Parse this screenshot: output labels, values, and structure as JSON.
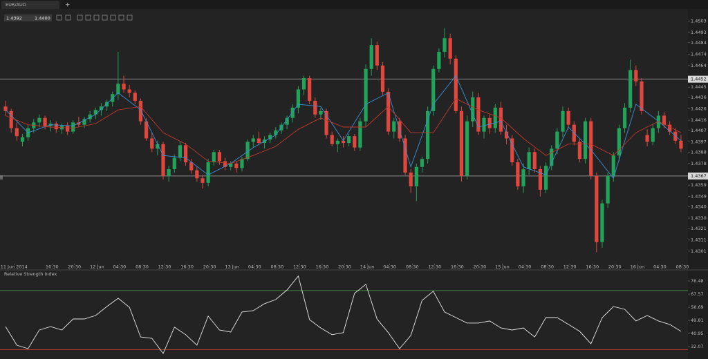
{
  "ui": {
    "tab": "EUR/AUD",
    "tab_add": "+",
    "bid": "1.4392",
    "ask": "1.4400"
  },
  "chart_data": [
    {
      "type": "candlestick",
      "up_color": "#22a35a",
      "down_color": "#e0473f",
      "xlim": [
        -0.5,
        120.5
      ],
      "ylim": [
        1.429,
        1.4513
      ],
      "xticks": [
        {
          "value": 1.5,
          "label": "11 Jun 2014"
        },
        {
          "value": 8.25,
          "label": "16:30"
        },
        {
          "value": 12.25,
          "label": "20:30"
        },
        {
          "value": 16.25,
          "label": "12 Jun"
        },
        {
          "value": 20.25,
          "label": "04:30"
        },
        {
          "value": 24.25,
          "label": "08:30"
        },
        {
          "value": 28.25,
          "label": "12:30"
        },
        {
          "value": 32.25,
          "label": "16:30"
        },
        {
          "value": 36.25,
          "label": "20:30"
        },
        {
          "value": 40.25,
          "label": "13 Jun"
        },
        {
          "value": 44.25,
          "label": "04:30"
        },
        {
          "value": 48.25,
          "label": "08:30"
        },
        {
          "value": 52.25,
          "label": "12:30"
        },
        {
          "value": 56.25,
          "label": "16:30"
        },
        {
          "value": 60.25,
          "label": "20:30"
        },
        {
          "value": 64.25,
          "label": "14 Jun"
        },
        {
          "value": 68.25,
          "label": "04:30"
        },
        {
          "value": 72.25,
          "label": "08:30"
        },
        {
          "value": 76.25,
          "label": "12:30"
        },
        {
          "value": 80.25,
          "label": "16:30"
        },
        {
          "value": 84.25,
          "label": "20:30"
        },
        {
          "value": 88.25,
          "label": "15 Jun"
        },
        {
          "value": 92.25,
          "label": "04:30"
        },
        {
          "value": 96.25,
          "label": "08:30"
        },
        {
          "value": 100.25,
          "label": "12:30"
        },
        {
          "value": 104.25,
          "label": "16:30"
        },
        {
          "value": 108.25,
          "label": "20:30"
        },
        {
          "value": 112.25,
          "label": "16 Jun"
        },
        {
          "value": 116.25,
          "label": "04:30"
        },
        {
          "value": 120.25,
          "label": "08:30"
        }
      ],
      "yticks": [
        1.4503,
        1.4493,
        1.4484,
        1.4474,
        1.4464,
        1.4445,
        1.4436,
        1.4426,
        1.4416,
        1.4407,
        1.4397,
        1.4388,
        1.4378,
        1.4359,
        1.4349,
        {
          "value": 1.434,
          "label": "1.4340"
        },
        {
          "value": 1.433,
          "label": "1.4330"
        },
        1.4321,
        1.4311,
        1.4301
      ],
      "levels": [
        1.4452,
        1.4367
      ],
      "ohlc": [
        [
          1.4428,
          1.4433,
          1.442,
          1.4424
        ],
        [
          1.4424,
          1.4426,
          1.4405,
          1.4409
        ],
        [
          1.4409,
          1.4414,
          1.4398,
          1.4402
        ],
        [
          1.4397,
          1.4404,
          1.4393,
          1.4401
        ],
        [
          1.4401,
          1.4412,
          1.4398,
          1.4409
        ],
        [
          1.4409,
          1.4417,
          1.4405,
          1.4414
        ],
        [
          1.4414,
          1.4421,
          1.441,
          1.4418
        ],
        [
          1.4418,
          1.442,
          1.4408,
          1.4411
        ],
        [
          1.4411,
          1.4416,
          1.4406,
          1.4413
        ],
        [
          1.4413,
          1.4415,
          1.4405,
          1.4408
        ],
        [
          1.4408,
          1.4413,
          1.4404,
          1.4411
        ],
        [
          1.4411,
          1.4414,
          1.4403,
          1.4406
        ],
        [
          1.4406,
          1.4416,
          1.4404,
          1.4414
        ],
        [
          1.4414,
          1.4419,
          1.441,
          1.4412
        ],
        [
          1.4412,
          1.4419,
          1.4409,
          1.4417
        ],
        [
          1.4417,
          1.4424,
          1.4414,
          1.4421
        ],
        [
          1.4421,
          1.4427,
          1.4417,
          1.4425
        ],
        [
          1.4425,
          1.4431,
          1.442,
          1.4428
        ],
        [
          1.4428,
          1.4434,
          1.4424,
          1.4432
        ],
        [
          1.4432,
          1.4441,
          1.4428,
          1.4439
        ],
        [
          1.4439,
          1.4476,
          1.4434,
          1.4448
        ],
        [
          1.4448,
          1.4455,
          1.444,
          1.4443
        ],
        [
          1.4443,
          1.4447,
          1.4436,
          1.444
        ],
        [
          1.444,
          1.4442,
          1.443,
          1.4433
        ],
        [
          1.4433,
          1.4435,
          1.4412,
          1.4415
        ],
        [
          1.4415,
          1.4418,
          1.4398,
          1.44
        ],
        [
          1.44,
          1.4405,
          1.4388,
          1.4391
        ],
        [
          1.4391,
          1.4398,
          1.4385,
          1.4395
        ],
        [
          1.4395,
          1.4397,
          1.4364,
          1.4367
        ],
        [
          1.4367,
          1.4376,
          1.4362,
          1.4373
        ],
        [
          1.4373,
          1.4386,
          1.437,
          1.4383
        ],
        [
          1.4383,
          1.4397,
          1.438,
          1.4394
        ],
        [
          1.4394,
          1.4396,
          1.4376,
          1.4379
        ],
        [
          1.4379,
          1.4382,
          1.4369,
          1.4372
        ],
        [
          1.4372,
          1.4375,
          1.4362,
          1.4365
        ],
        [
          1.4365,
          1.4368,
          1.4356,
          1.4361
        ],
        [
          1.4361,
          1.4382,
          1.4358,
          1.4379
        ],
        [
          1.4379,
          1.439,
          1.4376,
          1.4388
        ],
        [
          1.4388,
          1.439,
          1.4377,
          1.438
        ],
        [
          1.438,
          1.4383,
          1.4372,
          1.4375
        ],
        [
          1.4375,
          1.438,
          1.4372,
          1.4378
        ],
        [
          1.4378,
          1.438,
          1.437,
          1.4374
        ],
        [
          1.4374,
          1.4384,
          1.4371,
          1.4382
        ],
        [
          1.4382,
          1.4399,
          1.438,
          1.4397
        ],
        [
          1.4397,
          1.4403,
          1.4392,
          1.44
        ],
        [
          1.44,
          1.4406,
          1.4394,
          1.4396
        ],
        [
          1.4396,
          1.4402,
          1.4391,
          1.4399
        ],
        [
          1.4399,
          1.4405,
          1.4396,
          1.4403
        ],
        [
          1.4403,
          1.441,
          1.44,
          1.4407
        ],
        [
          1.4407,
          1.4414,
          1.4404,
          1.4412
        ],
        [
          1.4412,
          1.442,
          1.4408,
          1.4418
        ],
        [
          1.4418,
          1.443,
          1.4414,
          1.4427
        ],
        [
          1.4427,
          1.4446,
          1.4422,
          1.4443
        ],
        [
          1.4443,
          1.4455,
          1.4438,
          1.4453
        ],
        [
          1.4453,
          1.4455,
          1.443,
          1.4433
        ],
        [
          1.4433,
          1.4436,
          1.4418,
          1.4421
        ],
        [
          1.4421,
          1.4427,
          1.4416,
          1.4424
        ],
        [
          1.4424,
          1.4426,
          1.44,
          1.4403
        ],
        [
          1.4403,
          1.4406,
          1.4393,
          1.4395
        ],
        [
          1.4395,
          1.44,
          1.4388,
          1.4398
        ],
        [
          1.4398,
          1.4402,
          1.4392,
          1.4396
        ],
        [
          1.4396,
          1.4404,
          1.4393,
          1.4402
        ],
        [
          1.4402,
          1.4404,
          1.4389,
          1.4392
        ],
        [
          1.4392,
          1.4418,
          1.4389,
          1.4415
        ],
        [
          1.4415,
          1.4465,
          1.441,
          1.4461
        ],
        [
          1.4461,
          1.4488,
          1.4455,
          1.4482
        ],
        [
          1.4482,
          1.4485,
          1.446,
          1.4464
        ],
        [
          1.4464,
          1.4467,
          1.4438,
          1.4441
        ],
        [
          1.4441,
          1.4444,
          1.4403,
          1.4406
        ],
        [
          1.4406,
          1.4418,
          1.44,
          1.4415
        ],
        [
          1.4415,
          1.4418,
          1.4397,
          1.44
        ],
        [
          1.44,
          1.4403,
          1.4368,
          1.437
        ],
        [
          1.437,
          1.4373,
          1.4352,
          1.4358
        ],
        [
          1.4358,
          1.4378,
          1.4345,
          1.4375
        ],
        [
          1.4375,
          1.4384,
          1.437,
          1.4382
        ],
        [
          1.4382,
          1.4428,
          1.4378,
          1.4424
        ],
        [
          1.4424,
          1.4464,
          1.442,
          1.4461
        ],
        [
          1.4461,
          1.4479,
          1.4458,
          1.4476
        ],
        [
          1.4476,
          1.4497,
          1.4471,
          1.4488
        ],
        [
          1.4488,
          1.4492,
          1.4465,
          1.447
        ],
        [
          1.447,
          1.4473,
          1.4422,
          1.4424
        ],
        [
          1.4424,
          1.4428,
          1.4362,
          1.4367
        ],
        [
          1.4367,
          1.442,
          1.4364,
          1.4415
        ],
        [
          1.4415,
          1.4441,
          1.441,
          1.4436
        ],
        [
          1.4436,
          1.444,
          1.4403,
          1.4406
        ],
        [
          1.4406,
          1.442,
          1.44,
          1.4418
        ],
        [
          1.4418,
          1.4421,
          1.4404,
          1.4409
        ],
        [
          1.4409,
          1.443,
          1.4405,
          1.4427
        ],
        [
          1.4427,
          1.4432,
          1.4403,
          1.4406
        ],
        [
          1.4406,
          1.4412,
          1.4395,
          1.44
        ],
        [
          1.44,
          1.4403,
          1.4376,
          1.4379
        ],
        [
          1.4379,
          1.4382,
          1.4355,
          1.4358
        ],
        [
          1.4358,
          1.4378,
          1.4352,
          1.4373
        ],
        [
          1.4373,
          1.4392,
          1.4368,
          1.4388
        ],
        [
          1.4388,
          1.4391,
          1.437,
          1.4373
        ],
        [
          1.4373,
          1.4376,
          1.4349,
          1.4355
        ],
        [
          1.4355,
          1.4379,
          1.4352,
          1.4376
        ],
        [
          1.4376,
          1.4394,
          1.4372,
          1.4391
        ],
        [
          1.4391,
          1.4409,
          1.4386,
          1.4406
        ],
        [
          1.4406,
          1.4428,
          1.4401,
          1.4424
        ],
        [
          1.4424,
          1.4427,
          1.4409,
          1.4412
        ],
        [
          1.4412,
          1.4415,
          1.4394,
          1.4397
        ],
        [
          1.4397,
          1.44,
          1.4379,
          1.4382
        ],
        [
          1.4382,
          1.4418,
          1.4378,
          1.4415
        ],
        [
          1.4415,
          1.4418,
          1.4364,
          1.4367
        ],
        [
          1.4367,
          1.437,
          1.43,
          1.4309
        ],
        [
          1.4309,
          1.4346,
          1.4304,
          1.4343
        ],
        [
          1.4343,
          1.437,
          1.4339,
          1.4367
        ],
        [
          1.4367,
          1.4388,
          1.4362,
          1.4385
        ],
        [
          1.4385,
          1.4412,
          1.438,
          1.4409
        ],
        [
          1.4409,
          1.4431,
          1.4405,
          1.4427
        ],
        [
          1.4427,
          1.4469,
          1.4423,
          1.446
        ],
        [
          1.446,
          1.4464,
          1.4446,
          1.445
        ],
        [
          1.445,
          1.4453,
          1.4421,
          1.4424
        ],
        [
          1.4403,
          1.4408,
          1.4393,
          1.4397
        ],
        [
          1.4397,
          1.4413,
          1.4394,
          1.4409
        ],
        [
          1.4409,
          1.4424,
          1.4405,
          1.442
        ],
        [
          1.442,
          1.4423,
          1.4409,
          1.4412
        ],
        [
          1.4412,
          1.4415,
          1.4403,
          1.4406
        ],
        [
          1.4406,
          1.4409,
          1.4395,
          1.4398
        ],
        [
          1.4398,
          1.4403,
          1.4388,
          1.4391
        ]
      ],
      "series": [
        {
          "color": "#3b8fd6",
          "x": [
            0,
            4,
            8,
            12,
            16,
            20,
            24,
            28,
            32,
            36,
            40,
            44,
            48,
            52,
            56,
            60,
            64,
            68,
            72,
            76,
            80,
            84,
            88,
            92,
            96,
            100,
            104,
            108,
            112,
            116,
            120
          ],
          "values": [
            1.4425,
            1.4405,
            1.4412,
            1.4411,
            1.4421,
            1.444,
            1.4425,
            1.4385,
            1.4383,
            1.4368,
            1.4378,
            1.4392,
            1.4403,
            1.443,
            1.4428,
            1.4398,
            1.443,
            1.444,
            1.4375,
            1.443,
            1.4455,
            1.441,
            1.4415,
            1.4375,
            1.4368,
            1.441,
            1.439,
            1.4365,
            1.443,
            1.4415,
            1.4398
          ]
        },
        {
          "color": "#c0392b",
          "x": [
            0,
            4,
            8,
            12,
            16,
            20,
            24,
            28,
            32,
            36,
            40,
            44,
            48,
            52,
            56,
            60,
            64,
            68,
            72,
            76,
            80,
            84,
            88,
            92,
            96,
            100,
            104,
            108,
            112,
            116,
            120
          ],
          "values": [
            1.442,
            1.4412,
            1.441,
            1.4409,
            1.4413,
            1.4425,
            1.4428,
            1.4405,
            1.4395,
            1.438,
            1.4378,
            1.4385,
            1.4393,
            1.4408,
            1.4418,
            1.441,
            1.441,
            1.4428,
            1.4405,
            1.4405,
            1.4435,
            1.4425,
            1.4418,
            1.44,
            1.4385,
            1.4395,
            1.4395,
            1.4385,
            1.4405,
            1.4415,
            1.4405
          ]
        }
      ]
    },
    {
      "type": "line",
      "title": "Relative Strength Index",
      "color": "#e8e8e8",
      "xlim": [
        -0.5,
        120.5
      ],
      "ylim": [
        24.6,
        83.5
      ],
      "yticks": [
        76.48,
        67.57,
        58.69,
        49.81,
        40.95,
        32.07
      ],
      "levels": [
        70,
        30
      ],
      "level_colors": [
        "#3f8a3f",
        "#b03a32"
      ],
      "x": [
        0,
        2,
        4,
        6,
        8,
        10,
        12,
        14,
        16,
        18,
        20,
        22,
        24,
        26,
        28,
        30,
        32,
        34,
        36,
        38,
        40,
        42,
        44,
        46,
        48,
        50,
        52,
        54,
        56,
        58,
        60,
        62,
        64,
        66,
        68,
        70,
        72,
        74,
        76,
        78,
        80,
        82,
        84,
        86,
        88,
        90,
        92,
        94,
        96,
        98,
        100,
        102,
        104,
        106,
        108,
        110,
        112,
        114,
        116,
        118,
        120
      ],
      "values": [
        45.6,
        33.0,
        30.7,
        43.3,
        45.6,
        43.3,
        50.8,
        50.8,
        53.1,
        59.2,
        64.8,
        58.7,
        38.6,
        37.7,
        27.4,
        45.2,
        40.1,
        33.0,
        52.7,
        43.3,
        41.9,
        55.5,
        56.4,
        61.1,
        63.9,
        70.4,
        79.8,
        50.3,
        44.7,
        40.1,
        41.5,
        68.1,
        74.2,
        50.8,
        41.5,
        30.7,
        39.6,
        63.4,
        69.5,
        55.5,
        51.7,
        48.0,
        48.0,
        49.4,
        44.7,
        43.3,
        44.7,
        38.6,
        51.7,
        51.7,
        47.1,
        42.4,
        34.0,
        51.7,
        59.2,
        57.3,
        49.4,
        53.1,
        49.4,
        47.1,
        42.4
      ]
    }
  ]
}
